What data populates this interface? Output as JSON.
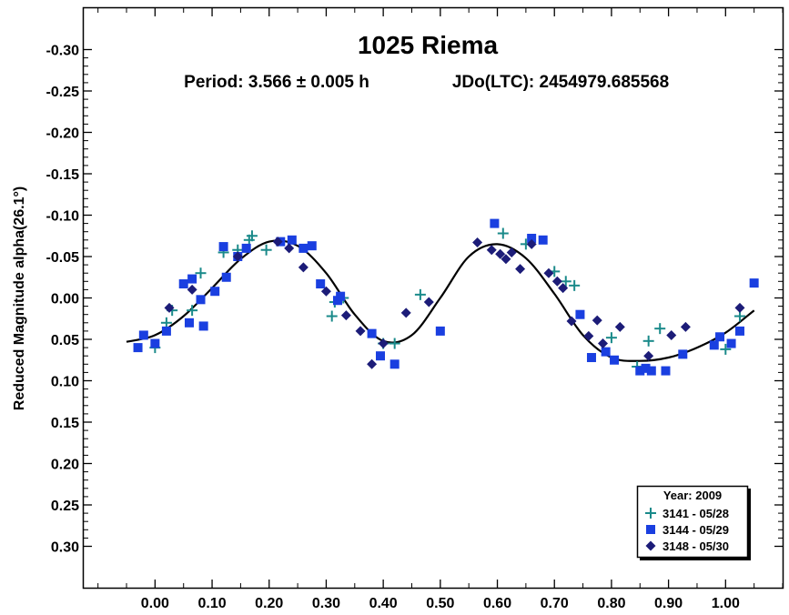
{
  "chart_data": {
    "type": "scatter",
    "title": "1025 Riema",
    "subtitle_period": "Period: 3.566 ± 0.005 h",
    "subtitle_epoch": "JDo(LTC): 2454979.685568",
    "ylabel": "Reduced Magnitude alpha(26.1°)",
    "xlabel": "",
    "xlim": [
      -0.125,
      1.1
    ],
    "ylim": [
      0.35,
      -0.35
    ],
    "y_inverted": true,
    "x_ticks": [
      0.0,
      0.1,
      0.2,
      0.3,
      0.4,
      0.5,
      0.6,
      0.7,
      0.8,
      0.9,
      1.0
    ],
    "x_tick_labels": [
      "0.00",
      "0.10",
      "0.20",
      "0.30",
      "0.40",
      "0.50",
      "0.60",
      "0.70",
      "0.80",
      "0.90",
      "1.00"
    ],
    "y_ticks": [
      -0.3,
      -0.25,
      -0.2,
      -0.15,
      -0.1,
      -0.05,
      0.0,
      0.05,
      0.1,
      0.15,
      0.2,
      0.25,
      0.3
    ],
    "y_tick_labels": [
      "-0.30",
      "-0.25",
      "-0.20",
      "-0.15",
      "-0.10",
      "-0.05",
      "0.00",
      "0.05",
      "0.10",
      "0.15",
      "0.20",
      "0.25",
      "0.30"
    ],
    "grid": false,
    "legend": {
      "title": "Year: 2009",
      "placement": "bottom-right",
      "entries": [
        {
          "label": "3141 - 05/28",
          "marker": "plus",
          "color": "#1a8a8a"
        },
        {
          "label": "3144 - 05/29",
          "marker": "square",
          "color": "#1a3fe0"
        },
        {
          "label": "3148 - 05/30",
          "marker": "diamond",
          "color": "#1c1c78"
        }
      ]
    },
    "fit_curve": {
      "color": "#000000",
      "x": [
        -0.05,
        0.0,
        0.05,
        0.1,
        0.15,
        0.2,
        0.25,
        0.3,
        0.35,
        0.4,
        0.45,
        0.5,
        0.55,
        0.6,
        0.65,
        0.7,
        0.75,
        0.8,
        0.85,
        0.9,
        0.95,
        1.0,
        1.05
      ],
      "y": [
        0.053,
        0.045,
        0.022,
        -0.012,
        -0.047,
        -0.068,
        -0.063,
        -0.03,
        0.02,
        0.052,
        0.045,
        0.0,
        -0.05,
        -0.065,
        -0.048,
        -0.005,
        0.045,
        0.072,
        0.076,
        0.072,
        0.06,
        0.042,
        0.015
      ]
    },
    "series": [
      {
        "name": "3141 - 05/28",
        "marker": "plus",
        "color": "#1a8a8a",
        "x": [
          0.0,
          0.02,
          0.03,
          0.065,
          0.08,
          0.12,
          0.145,
          0.165,
          0.17,
          0.195,
          0.31,
          0.315,
          0.33,
          0.4,
          0.42,
          0.465,
          0.61,
          0.65,
          0.7,
          0.72,
          0.735,
          0.8,
          0.845,
          0.865,
          0.885,
          1.0,
          1.025
        ],
        "y": [
          0.06,
          0.03,
          0.015,
          0.015,
          -0.03,
          -0.055,
          -0.058,
          -0.07,
          -0.075,
          -0.058,
          0.022,
          0.005,
          0.0,
          0.055,
          0.055,
          -0.004,
          -0.078,
          -0.065,
          -0.032,
          -0.02,
          -0.015,
          0.048,
          0.083,
          0.052,
          0.037,
          0.062,
          0.022
        ]
      },
      {
        "name": "3144 - 05/29",
        "marker": "square",
        "color": "#1a3fe0",
        "x": [
          -0.03,
          -0.02,
          0.0,
          0.02,
          0.05,
          0.06,
          0.065,
          0.08,
          0.085,
          0.105,
          0.12,
          0.125,
          0.145,
          0.16,
          0.22,
          0.24,
          0.26,
          0.275,
          0.29,
          0.32,
          0.325,
          0.38,
          0.395,
          0.42,
          0.5,
          0.595,
          0.66,
          0.68,
          0.745,
          0.765,
          0.79,
          0.805,
          0.85,
          0.86,
          0.87,
          0.895,
          0.925,
          0.98,
          0.99,
          1.01,
          1.025,
          1.05
        ],
        "y": [
          0.06,
          0.045,
          0.055,
          0.04,
          -0.017,
          0.03,
          -0.023,
          0.002,
          0.034,
          -0.008,
          -0.062,
          -0.025,
          -0.05,
          -0.06,
          -0.068,
          -0.07,
          -0.06,
          -0.063,
          -0.017,
          0.003,
          -0.002,
          0.043,
          0.07,
          0.08,
          0.04,
          -0.09,
          -0.072,
          -0.07,
          0.02,
          0.072,
          0.065,
          0.075,
          0.088,
          0.085,
          0.088,
          0.088,
          0.068,
          0.057,
          0.047,
          0.055,
          0.04,
          -0.018
        ]
      },
      {
        "name": "3148 - 05/30",
        "marker": "diamond",
        "color": "#1c1c78",
        "x": [
          0.025,
          0.065,
          0.145,
          0.215,
          0.235,
          0.26,
          0.3,
          0.335,
          0.36,
          0.38,
          0.4,
          0.44,
          0.48,
          0.565,
          0.59,
          0.605,
          0.615,
          0.625,
          0.64,
          0.66,
          0.69,
          0.705,
          0.715,
          0.73,
          0.76,
          0.775,
          0.785,
          0.815,
          0.865,
          0.905,
          0.93,
          1.025
        ],
        "y": [
          0.012,
          -0.01,
          -0.05,
          -0.068,
          -0.06,
          -0.037,
          -0.008,
          0.021,
          0.04,
          0.08,
          0.055,
          0.018,
          0.005,
          -0.067,
          -0.058,
          -0.053,
          -0.047,
          -0.055,
          -0.035,
          -0.065,
          -0.03,
          -0.02,
          -0.012,
          0.028,
          0.046,
          0.027,
          0.055,
          0.035,
          0.07,
          0.045,
          0.035,
          0.012
        ]
      }
    ]
  }
}
